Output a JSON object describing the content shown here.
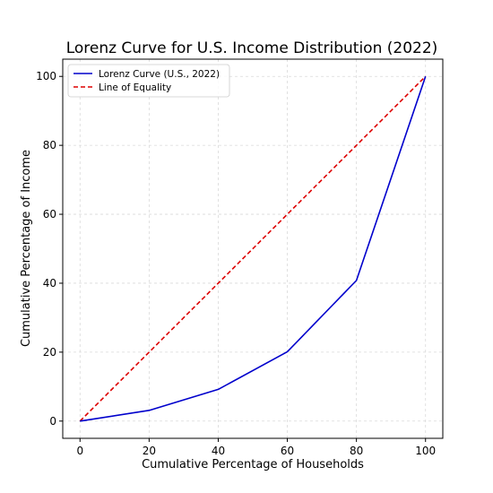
{
  "chart_data": {
    "type": "line",
    "title": "Lorenz Curve for U.S. Income Distribution (2022)",
    "xlabel": "Cumulative Percentage of Households",
    "ylabel": "Cumulative Percentage of Income",
    "xlim": [
      -5,
      105
    ],
    "ylim": [
      -5,
      105
    ],
    "xticks": [
      0,
      20,
      40,
      60,
      80,
      100
    ],
    "yticks": [
      0,
      20,
      40,
      60,
      80,
      100
    ],
    "grid": true,
    "legend_position": "top-left",
    "series": [
      {
        "name": "Lorenz Curve (U.S., 2022)",
        "style": "solid",
        "color": "#0000cc",
        "x": [
          0,
          20,
          40,
          60,
          80,
          100
        ],
        "y": [
          0,
          3.1,
          9.2,
          20.1,
          40.8,
          100
        ]
      },
      {
        "name": "Line of Equality",
        "style": "dashed",
        "color": "#dd0000",
        "x": [
          0,
          100
        ],
        "y": [
          0,
          100
        ]
      }
    ]
  }
}
